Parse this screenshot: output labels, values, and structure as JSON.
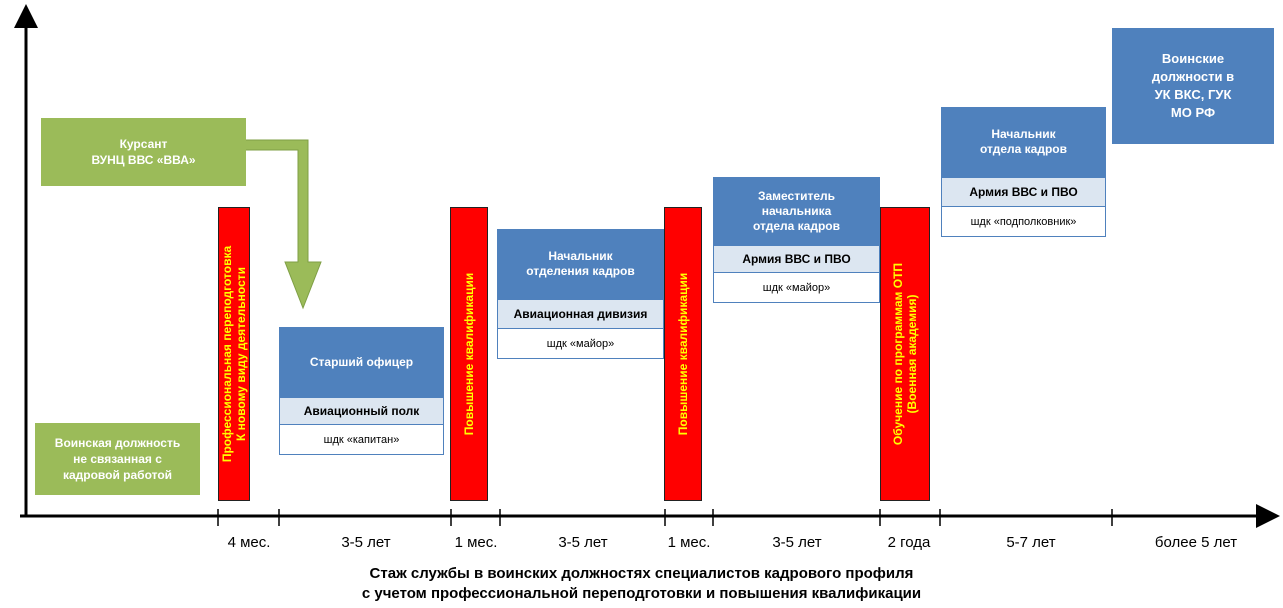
{
  "colors": {
    "blue": "#4f81bd",
    "green": "#9bbb59",
    "red": "#ff0000",
    "yellow_text": "#ffff00",
    "light_blue": "#dce6f1"
  },
  "start_box": {
    "text": "Воинская должность не связанная с кадровой работой"
  },
  "cadet_box": {
    "line1": "Курсант",
    "line2": "ВУНЦ ВВС «ВВА»"
  },
  "training_bars": [
    {
      "line1": "Профессиональная переподготовка",
      "line2": "К новому виду деятельности"
    },
    {
      "line1": "Повышение квалификации",
      "line2": ""
    },
    {
      "line1": "Повышение квалификации",
      "line2": ""
    },
    {
      "line1": "Обучение по программам ОТП",
      "line2": "(Военная академия)"
    }
  ],
  "positions": [
    {
      "title": "Старший офицер",
      "unit": "Авиационный полк",
      "rank": "шдк «капитан»"
    },
    {
      "title": "Начальник отделения кадров",
      "unit": "Авиационная дивизия",
      "rank": "шдк «майор»"
    },
    {
      "title": "Заместитель начальника отдела кадров",
      "unit": "Армия ВВС и ПВО",
      "rank": "шдк «майор»"
    },
    {
      "title": "Начальник отдела кадров",
      "unit": "Армия ВВС и ПВО",
      "rank": "шдк «подполковник»"
    }
  ],
  "top_box": {
    "text": "Воинские должности в УК ВКС, ГУК МО РФ"
  },
  "axis_labels": [
    "4 мес.",
    "3-5 лет",
    "1 мес.",
    "3-5 лет",
    "1 мес.",
    "3-5 лет",
    "2 года",
    "5-7 лет",
    "более 5 лет"
  ],
  "caption": {
    "line1": "Стаж службы в воинских должностях специалистов кадрового профиля",
    "line2": "с учетом профессиональной переподготовки и повышения квалификации"
  }
}
